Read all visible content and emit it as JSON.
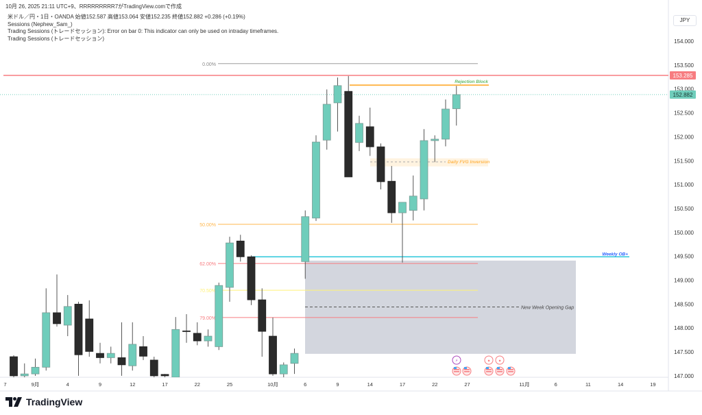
{
  "caption": "10月 26, 2025 21:11 UTC+9、RRRRRRRRR7がTradingView.comで作成",
  "legend": {
    "symbol_line": "米ドル／円・1日・OANDA  始値152.587  高値153.064  安値152.235  終値152.882  +0.286 (+0.19%)",
    "indicator1": "Sessions (Nephew_Sam_)",
    "indicator2": "Trading Sessions (トレードセッション): Error on bar 0: This indicator can only be used on intraday timeframes.",
    "indicator3": "Trading Sessions (トレードセッション)"
  },
  "currency": "JPY",
  "price_axis": [
    "154.000",
    "153.500",
    "153.000",
    "152.500",
    "152.000",
    "151.500",
    "151.000",
    "150.500",
    "150.000",
    "149.500",
    "149.000",
    "148.500",
    "148.000",
    "147.500",
    "147.000"
  ],
  "price_labels": {
    "red_level": "153.285",
    "last_price": "152.882"
  },
  "colors": {
    "up": "#6fcdbb",
    "down": "#2b2b2b",
    "red": "#f77c80",
    "last": "#6fcdbb",
    "orange": "#ffb74d",
    "cyan": "#26c6da",
    "gap_box": "#d1d4dc",
    "green_text": "#66bb6a",
    "blue_text": "#2962ff"
  },
  "time_axis": [
    {
      "label": "7",
      "bar": -0.8
    },
    {
      "label": "9月",
      "bar": 2
    },
    {
      "label": "4",
      "bar": 5
    },
    {
      "label": "9",
      "bar": 8
    },
    {
      "label": "12",
      "bar": 11
    },
    {
      "label": "17",
      "bar": 14
    },
    {
      "label": "22",
      "bar": 17
    },
    {
      "label": "25",
      "bar": 20
    },
    {
      "label": "10月",
      "bar": 24
    },
    {
      "label": "6",
      "bar": 27
    },
    {
      "label": "9",
      "bar": 30
    },
    {
      "label": "14",
      "bar": 33
    },
    {
      "label": "17",
      "bar": 36
    },
    {
      "label": "22",
      "bar": 39
    },
    {
      "label": "27",
      "bar": 42
    },
    {
      "label": "11月",
      "bar": 47.3
    },
    {
      "label": "6",
      "bar": 50.2
    },
    {
      "label": "11",
      "bar": 53.2
    },
    {
      "label": "14",
      "bar": 56.2
    },
    {
      "label": "19",
      "bar": 59.2
    }
  ],
  "candles": [
    [
      147.4,
      147.43,
      146.97,
      147.0
    ],
    [
      147.0,
      147.26,
      146.97,
      147.04
    ],
    [
      147.04,
      147.36,
      147.0,
      147.18
    ],
    [
      147.18,
      148.83,
      147.11,
      148.32
    ],
    [
      148.32,
      149.12,
      148.03,
      148.09
    ],
    [
      148.06,
      148.69,
      147.83,
      148.45
    ],
    [
      148.5,
      148.55,
      147.0,
      147.44
    ],
    [
      148.19,
      148.58,
      147.4,
      147.51
    ],
    [
      147.47,
      147.69,
      147.26,
      147.38
    ],
    [
      147.38,
      147.61,
      147.26,
      147.47
    ],
    [
      147.38,
      148.12,
      147.0,
      147.23
    ],
    [
      147.21,
      148.12,
      147.11,
      147.66
    ],
    [
      147.61,
      147.83,
      147.33,
      147.41
    ],
    [
      147.33,
      147.4,
      146.97,
      147.0
    ],
    [
      147.03,
      147.04,
      146.97,
      147.0
    ],
    [
      146.97,
      148.23,
      146.94,
      147.97
    ],
    [
      147.94,
      148.29,
      147.69,
      147.93
    ],
    [
      147.89,
      148.12,
      147.64,
      147.73
    ],
    [
      147.73,
      147.97,
      147.61,
      147.83
    ],
    [
      147.61,
      148.95,
      147.54,
      148.89
    ],
    [
      148.85,
      149.91,
      148.55,
      149.78
    ],
    [
      149.82,
      149.95,
      149.39,
      149.49
    ],
    [
      149.49,
      149.52,
      148.48,
      148.59
    ],
    [
      148.59,
      148.83,
      147.4,
      147.93
    ],
    [
      147.83,
      148.22,
      147.0,
      147.04
    ],
    [
      147.04,
      147.28,
      146.97,
      147.23
    ],
    [
      147.26,
      147.57,
      147.04,
      147.47
    ],
    [
      149.39,
      150.46,
      149.03,
      150.33
    ],
    [
      150.3,
      152.03,
      150.24,
      151.89
    ],
    [
      151.93,
      152.99,
      151.73,
      152.68
    ],
    [
      152.71,
      153.24,
      152.11,
      153.07
    ],
    [
      152.95,
      153.27,
      151.16,
      151.16
    ],
    [
      151.88,
      152.44,
      151.7,
      152.28
    ],
    [
      152.21,
      152.61,
      151.6,
      151.79
    ],
    [
      151.79,
      151.86,
      150.9,
      151.06
    ],
    [
      151.07,
      151.39,
      150.2,
      150.41
    ],
    [
      150.41,
      150.63,
      149.37,
      150.63
    ],
    [
      150.46,
      151.19,
      150.25,
      150.76
    ],
    [
      150.7,
      152.16,
      150.46,
      151.92
    ],
    [
      151.92,
      152.03,
      151.47,
      151.95
    ],
    [
      151.95,
      152.78,
      151.8,
      152.58
    ],
    [
      152.587,
      153.064,
      152.235,
      152.882
    ]
  ],
  "fib_levels": [
    {
      "label": "0.00%",
      "price": 153.53,
      "color": "#9e9e9e"
    },
    {
      "label": "50.00%",
      "price": 150.17,
      "color": "#ffb74d"
    },
    {
      "label": "62.00%",
      "price": 149.35,
      "color": "#f77c80"
    },
    {
      "label": "70.50%",
      "price": 148.79,
      "color": "#fff176"
    },
    {
      "label": "79.00%",
      "price": 148.22,
      "color": "#f77c80"
    }
  ],
  "annotations": {
    "rejection_block": {
      "label": "Rejection Block",
      "price": 153.08
    },
    "daily_fvg": {
      "label": "Daily FVG Inversion",
      "top": 151.55,
      "bottom": 151.38
    },
    "weekly_ob": {
      "label": "Weekly OB+",
      "price": 149.49
    },
    "nwog": {
      "label": "New Week Opening Gap",
      "top": 149.41,
      "bottom": 147.46,
      "mid": 148.44
    }
  },
  "logo_text": "TradingView"
}
